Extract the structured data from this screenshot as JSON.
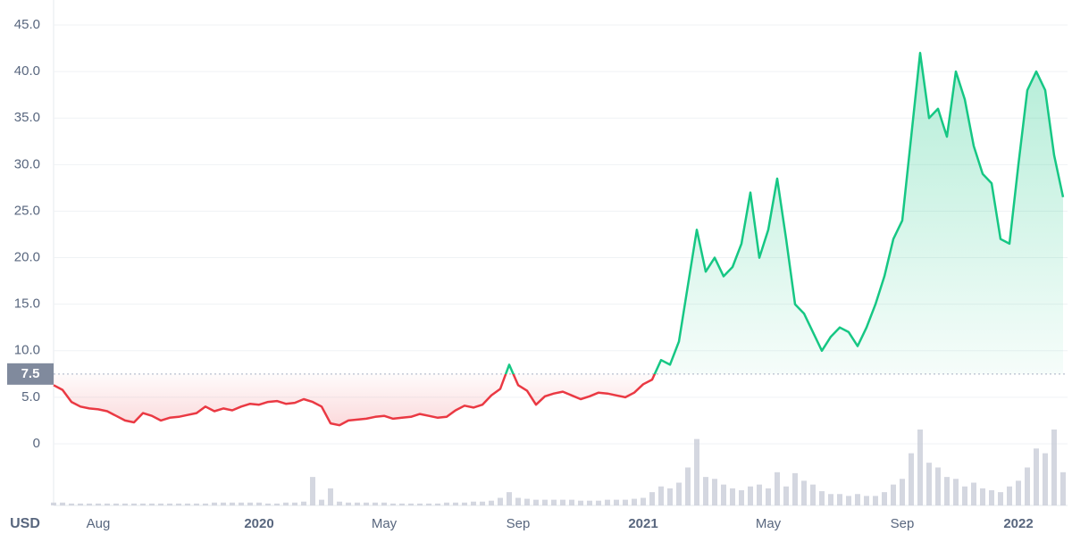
{
  "chart_data": {
    "type": "line",
    "unit_label": "USD",
    "categories": [
      null,
      null,
      null,
      null,
      null,
      "Aug",
      null,
      null,
      null,
      null,
      null,
      null,
      null,
      null,
      null,
      null,
      null,
      null,
      null,
      null,
      null,
      null,
      null,
      "2020",
      null,
      null,
      null,
      null,
      null,
      null,
      null,
      null,
      null,
      null,
      null,
      null,
      null,
      "May",
      null,
      null,
      null,
      null,
      null,
      null,
      null,
      null,
      null,
      null,
      null,
      null,
      null,
      null,
      "Sep",
      null,
      null,
      null,
      null,
      null,
      null,
      null,
      null,
      null,
      null,
      null,
      null,
      null,
      "2021",
      null,
      null,
      null,
      null,
      null,
      null,
      null,
      null,
      null,
      null,
      null,
      null,
      null,
      "May",
      null,
      null,
      null,
      null,
      null,
      null,
      null,
      null,
      null,
      null,
      null,
      null,
      null,
      null,
      "Sep",
      null,
      null,
      null,
      null,
      null,
      null,
      null,
      null,
      null,
      null,
      null,
      null,
      "2022",
      null,
      null,
      null,
      null,
      null
    ],
    "values": [
      6.3,
      5.8,
      4.5,
      4.0,
      3.8,
      3.7,
      3.5,
      3.0,
      2.5,
      2.3,
      3.3,
      3.0,
      2.5,
      2.8,
      2.9,
      3.1,
      3.3,
      4.0,
      3.5,
      3.8,
      3.6,
      4.0,
      4.3,
      4.2,
      4.5,
      4.6,
      4.3,
      4.4,
      4.8,
      4.5,
      4.0,
      2.2,
      2.0,
      2.5,
      2.6,
      2.7,
      2.9,
      3.0,
      2.7,
      2.8,
      2.9,
      3.2,
      3.0,
      2.8,
      2.9,
      3.6,
      4.1,
      3.9,
      4.2,
      5.2,
      5.9,
      8.5,
      6.3,
      5.7,
      4.2,
      5.1,
      5.4,
      5.6,
      5.2,
      4.8,
      5.1,
      5.5,
      5.4,
      5.2,
      5.0,
      5.5,
      6.4,
      6.9,
      9.0,
      8.5,
      11.0,
      17.0,
      23.0,
      18.5,
      20.0,
      18.0,
      19.0,
      21.5,
      27.0,
      20.0,
      23.0,
      28.5,
      22.0,
      15.0,
      14.0,
      12.0,
      10.0,
      11.5,
      12.5,
      12.0,
      10.5,
      12.5,
      15.0,
      18.0,
      22.0,
      24.0,
      33.0,
      42.0,
      35.0,
      36.0,
      33.0,
      40.0,
      37.0,
      32.0,
      29.0,
      28.0,
      22.0,
      21.5,
      30.0,
      38.0,
      40.0,
      38.0,
      31.0,
      26.5
    ],
    "baseline": 7.5,
    "up_color": "#16c784",
    "down_color": "#ea3943",
    "volume": {
      "color": "#c9cdd8",
      "values": [
        3,
        3,
        2,
        2,
        2,
        2,
        2,
        2,
        2,
        2,
        2,
        2,
        2,
        2,
        2,
        2,
        2,
        2,
        3,
        3,
        3,
        3,
        3,
        3,
        2,
        2,
        3,
        3,
        4,
        30,
        6,
        18,
        4,
        3,
        3,
        3,
        3,
        3,
        2,
        2,
        2,
        2,
        2,
        2,
        3,
        3,
        3,
        4,
        4,
        5,
        8,
        14,
        8,
        7,
        6,
        6,
        6,
        6,
        6,
        5,
        5,
        5,
        6,
        6,
        6,
        7,
        8,
        14,
        20,
        18,
        24,
        40,
        70,
        30,
        28,
        22,
        18,
        16,
        20,
        22,
        18,
        35,
        20,
        34,
        26,
        22,
        15,
        12,
        12,
        10,
        12,
        10,
        10,
        14,
        22,
        28,
        55,
        80,
        45,
        40,
        30,
        28,
        20,
        24,
        18,
        16,
        14,
        20,
        26,
        40,
        60,
        55,
        80,
        35
      ]
    },
    "ylim": [
      0,
      45
    ],
    "yticks": [
      0,
      {
        "value": 5,
        "label": "5.0"
      },
      {
        "value": 10,
        "label": "10.0"
      },
      {
        "value": 15,
        "label": "15.0"
      },
      {
        "value": 20,
        "label": "20.0"
      },
      {
        "value": 25,
        "label": "25.0"
      },
      {
        "value": 30,
        "label": "30.0"
      },
      {
        "value": 35,
        "label": "35.0"
      },
      {
        "value": 40,
        "label": "40.0"
      },
      {
        "value": 45,
        "label": "45.0"
      }
    ],
    "grid": true
  }
}
